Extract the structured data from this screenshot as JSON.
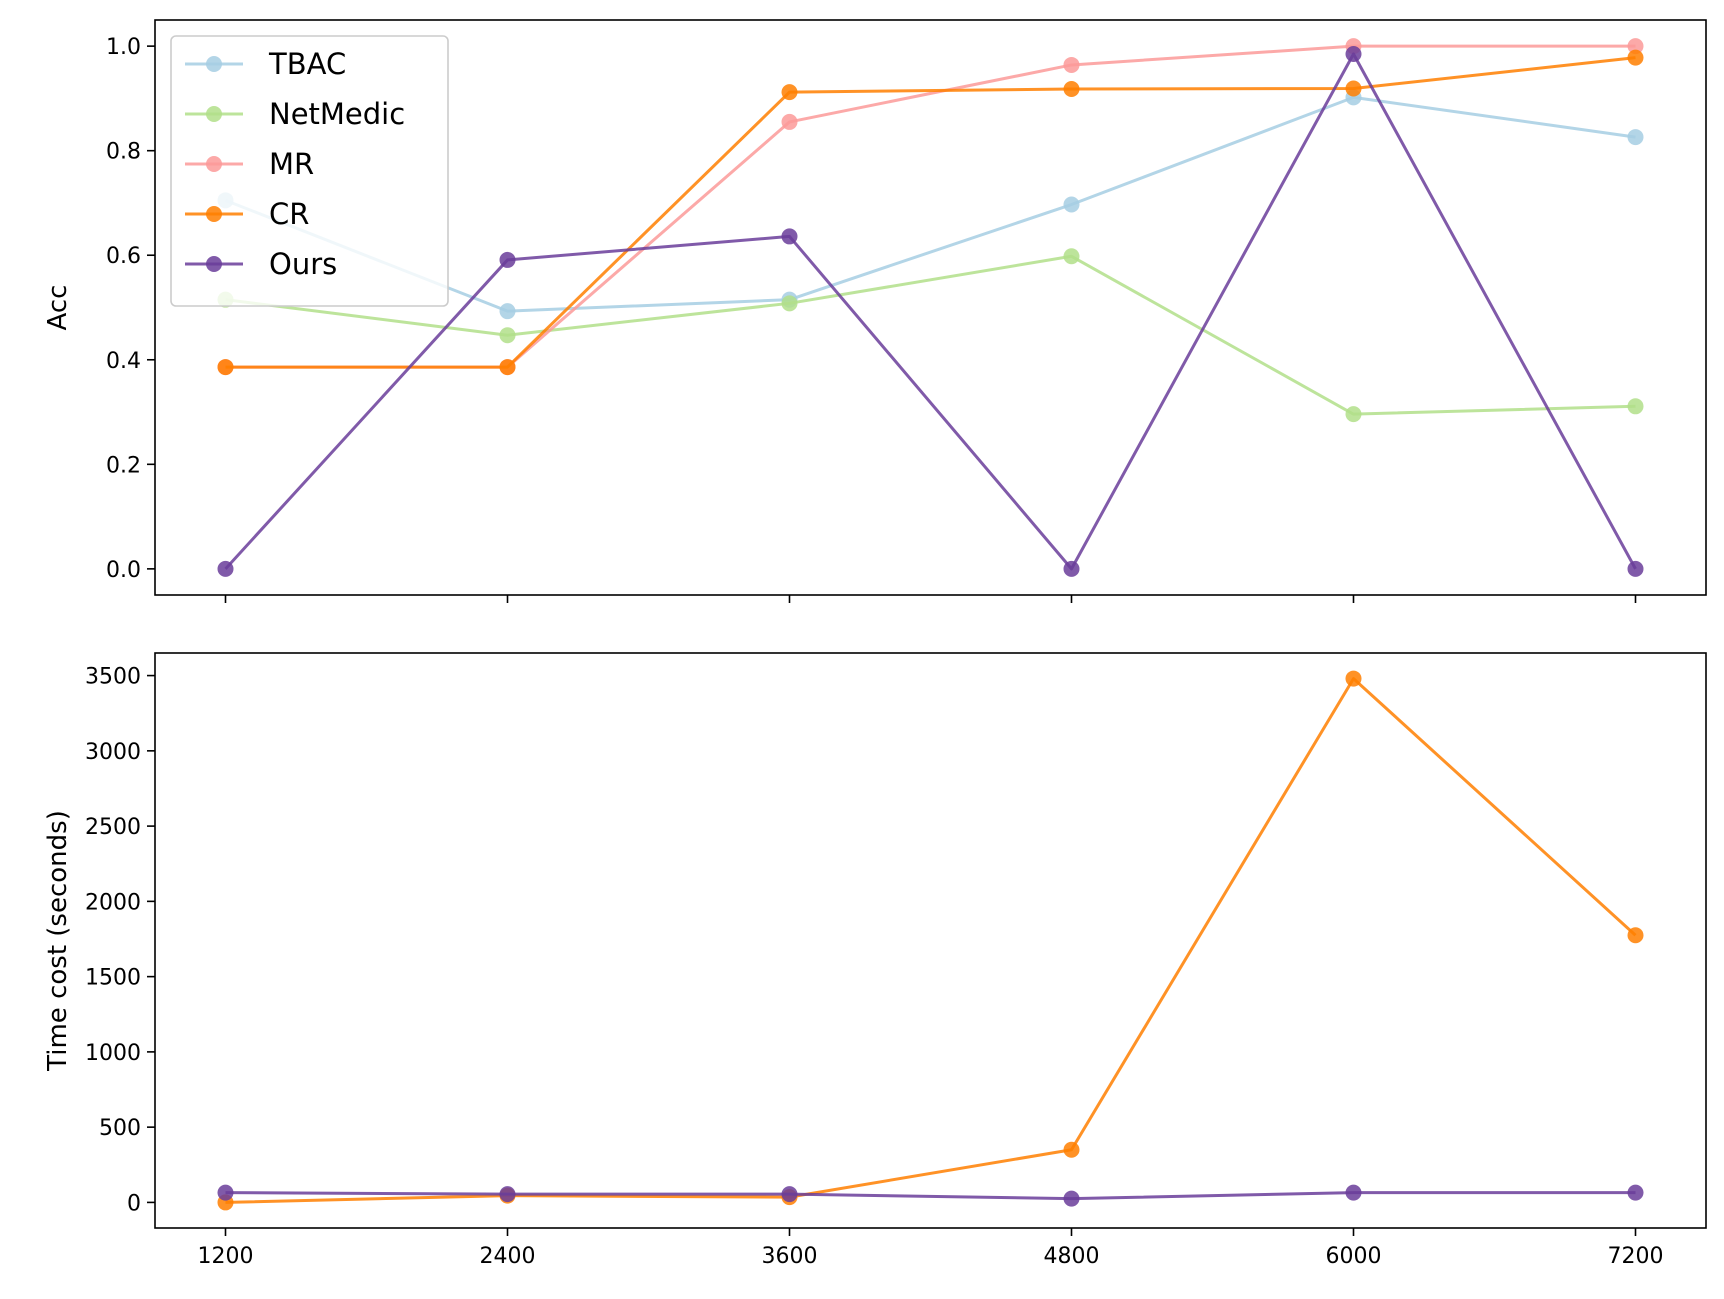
{
  "chart_data": [
    {
      "type": "line",
      "ylabel": "Acc",
      "ylim": [
        -0.05,
        1.05
      ],
      "yticks": [
        0.0,
        0.2,
        0.4,
        0.6,
        0.8,
        1.0
      ],
      "ytick_labels": [
        "0.0",
        "0.2",
        "0.4",
        "0.6",
        "0.8",
        "1.0"
      ],
      "x": [
        1200,
        2400,
        3600,
        4800,
        6000,
        7200
      ],
      "xlim": [
        900,
        7500
      ],
      "show_x_tick_labels": false,
      "legend": {
        "placement": "upper-left"
      },
      "series": [
        {
          "name": "TBAC",
          "color": "#a6cee3",
          "values": [
            0.705,
            0.493,
            0.515,
            0.697,
            0.902,
            0.826
          ]
        },
        {
          "name": "NetMedic",
          "color": "#b2df8a",
          "values": [
            0.515,
            0.447,
            0.508,
            0.598,
            0.296,
            0.311
          ]
        },
        {
          "name": "MR",
          "color": "#fb9a99",
          "values": [
            0.386,
            0.386,
            0.855,
            0.964,
            1.0,
            1.0
          ]
        },
        {
          "name": "CR",
          "color": "#ff7f00",
          "values": [
            0.386,
            0.386,
            0.912,
            0.918,
            0.919,
            0.978
          ]
        },
        {
          "name": "Ours",
          "color": "#6a3d9a",
          "values": [
            0.0,
            0.591,
            0.636,
            0.0,
            0.985,
            0.0
          ]
        }
      ]
    },
    {
      "type": "line",
      "ylabel": "Time cost (seconds)",
      "ylim": [
        -170,
        3650
      ],
      "yticks": [
        0,
        500,
        1000,
        1500,
        2000,
        2500,
        3000,
        3500
      ],
      "ytick_labels": [
        "0",
        "500",
        "1000",
        "1500",
        "2000",
        "2500",
        "3000",
        "3500"
      ],
      "x": [
        1200,
        2400,
        3600,
        4800,
        6000,
        7200
      ],
      "x_tick_labels": [
        "1200",
        "2400",
        "3600",
        "4800",
        "6000",
        "7200"
      ],
      "xlim": [
        900,
        7500
      ],
      "show_x_tick_labels": true,
      "series": [
        {
          "name": "CR",
          "color": "#ff7f00",
          "values": [
            0,
            45,
            35,
            350,
            3480,
            1775
          ]
        },
        {
          "name": "Ours",
          "color": "#6a3d9a",
          "values": [
            65,
            55,
            55,
            25,
            65,
            65
          ]
        }
      ]
    }
  ]
}
